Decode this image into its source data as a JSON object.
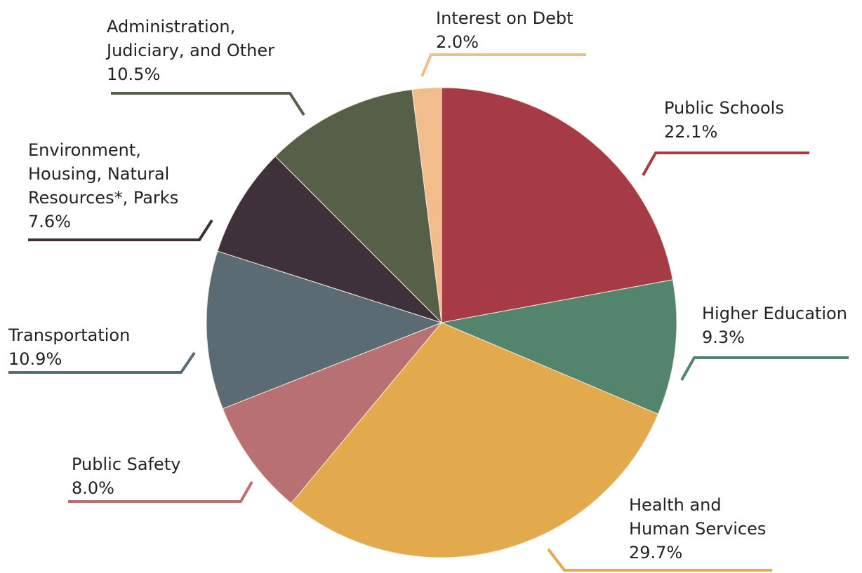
{
  "chart_data": {
    "type": "pie",
    "title": "",
    "start_angle_deg": 0,
    "direction": "clockwise",
    "legend": "none",
    "slices": [
      {
        "label": "Public Schools",
        "value": 22.1,
        "value_label": "22.1%",
        "color": "#a63a45"
      },
      {
        "label": "Higher Education",
        "value": 9.3,
        "value_label": "9.3%",
        "color": "#53846e"
      },
      {
        "label": "Health and Human Services",
        "value": 29.7,
        "value_label": "29.7%",
        "color": "#e2a94d"
      },
      {
        "label": "Public Safety",
        "value": 8.0,
        "value_label": "8.0%",
        "color": "#b87073"
      },
      {
        "label": "Transportation",
        "value": 10.9,
        "value_label": "10.9%",
        "color": "#5b6b73"
      },
      {
        "label": "Environment, Housing, Natural Resources*, Parks",
        "value": 7.6,
        "value_label": "7.6%",
        "color": "#3e313a"
      },
      {
        "label": "Administration, Judiciary, and Other",
        "value": 10.5,
        "value_label": "10.5%",
        "color": "#566048"
      },
      {
        "label": "Interest on Debt",
        "value": 2.0,
        "value_label": "2.0%",
        "color": "#f2bd8c"
      }
    ]
  }
}
